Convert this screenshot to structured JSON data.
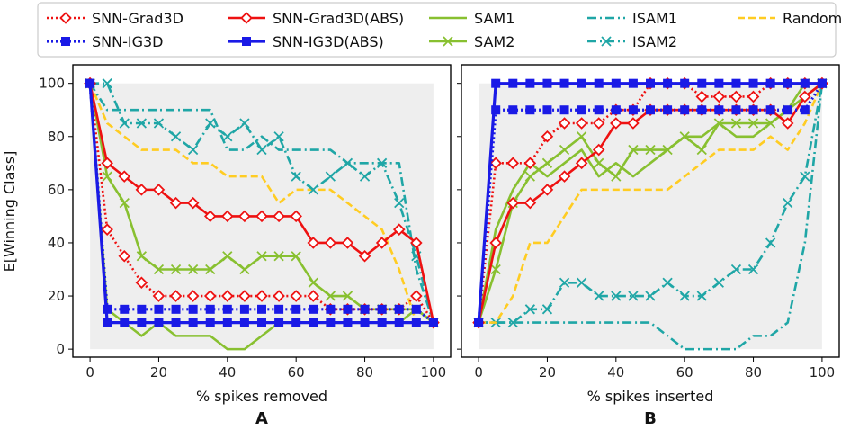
{
  "colors": {
    "red": "#ee1111",
    "blue": "#1a1ae6",
    "green": "#88c030",
    "teal": "#1fa6a6",
    "yellow": "#ffcc22",
    "shade": "#eeeeee"
  },
  "legend": [
    {
      "label": "SNN-Grad3D",
      "color": "#ee1111",
      "dash": "2,3",
      "marker": "diamond"
    },
    {
      "label": "SNN-IG3D",
      "color": "#1a1ae6",
      "dash": "2,3",
      "marker": "square"
    },
    {
      "label": "SNN-Grad3D(ABS)",
      "color": "#ee1111",
      "dash": "",
      "marker": "diamond"
    },
    {
      "label": "SNN-IG3D(ABS)",
      "color": "#1a1ae6",
      "dash": "",
      "marker": "square"
    },
    {
      "label": "SAM1",
      "color": "#88c030",
      "dash": "",
      "marker": "none"
    },
    {
      "label": "SAM2",
      "color": "#88c030",
      "dash": "",
      "marker": "x"
    },
    {
      "label": "ISAM1",
      "color": "#1fa6a6",
      "dash": "10,4,2,4",
      "marker": "none"
    },
    {
      "label": "ISAM2",
      "color": "#1fa6a6",
      "dash": "10,4,2,4",
      "marker": "x"
    },
    {
      "label": "Random",
      "color": "#ffcc22",
      "dash": "8,4",
      "marker": "none"
    }
  ],
  "chart_data": [
    {
      "panel": "A",
      "type": "line",
      "xlabel": "% spikes removed",
      "ylabel": "E[Winning Class]",
      "xlim": [
        -5,
        105
      ],
      "ylim": [
        -3,
        107
      ],
      "xticks": [
        0,
        20,
        40,
        60,
        80,
        100
      ],
      "yticks": [
        0,
        20,
        40,
        60,
        80,
        100
      ],
      "x": [
        0,
        5,
        10,
        15,
        20,
        25,
        30,
        35,
        40,
        45,
        50,
        55,
        60,
        65,
        70,
        75,
        80,
        85,
        90,
        95,
        100
      ],
      "series": [
        {
          "name": "Random",
          "values": [
            100,
            85,
            80,
            75,
            75,
            75,
            70,
            70,
            65,
            65,
            65,
            55,
            60,
            60,
            60,
            55,
            50,
            45,
            30,
            10,
            10
          ]
        },
        {
          "name": "ISAM1",
          "values": [
            100,
            90,
            90,
            90,
            90,
            90,
            90,
            90,
            75,
            75,
            80,
            75,
            75,
            75,
            75,
            70,
            70,
            70,
            70,
            30,
            10
          ]
        },
        {
          "name": "ISAM2",
          "values": [
            100,
            100,
            85,
            85,
            85,
            80,
            75,
            85,
            80,
            85,
            75,
            80,
            65,
            60,
            65,
            70,
            65,
            70,
            55,
            35,
            10
          ]
        },
        {
          "name": "SAM1",
          "values": [
            100,
            15,
            10,
            5,
            10,
            5,
            5,
            5,
            0,
            0,
            5,
            10,
            10,
            10,
            10,
            10,
            10,
            10,
            10,
            15,
            10
          ]
        },
        {
          "name": "SAM2",
          "values": [
            100,
            65,
            55,
            35,
            30,
            30,
            30,
            30,
            35,
            30,
            35,
            35,
            35,
            25,
            20,
            20,
            15,
            15,
            15,
            15,
            10
          ]
        },
        {
          "name": "SNN-Grad3D",
          "values": [
            100,
            45,
            35,
            25,
            20,
            20,
            20,
            20,
            20,
            20,
            20,
            20,
            20,
            20,
            15,
            15,
            15,
            15,
            15,
            20,
            10
          ]
        },
        {
          "name": "SNN-Grad3D(ABS)",
          "values": [
            100,
            70,
            65,
            60,
            60,
            55,
            55,
            50,
            50,
            50,
            50,
            50,
            50,
            40,
            40,
            40,
            35,
            40,
            45,
            40,
            10
          ]
        },
        {
          "name": "SNN-IG3D",
          "values": [
            100,
            15,
            15,
            15,
            15,
            15,
            15,
            15,
            15,
            15,
            15,
            15,
            15,
            15,
            15,
            15,
            15,
            15,
            15,
            15,
            10
          ]
        },
        {
          "name": "SNN-IG3D(ABS)",
          "values": [
            100,
            10,
            10,
            10,
            10,
            10,
            10,
            10,
            10,
            10,
            10,
            10,
            10,
            10,
            10,
            10,
            10,
            10,
            10,
            10,
            10
          ]
        }
      ]
    },
    {
      "panel": "B",
      "type": "line",
      "xlabel": "% spikes inserted",
      "ylabel": "",
      "xlim": [
        -5,
        105
      ],
      "ylim": [
        -3,
        107
      ],
      "xticks": [
        0,
        20,
        40,
        60,
        80,
        100
      ],
      "yticks": [
        0,
        20,
        40,
        60,
        80,
        100
      ],
      "x": [
        0,
        5,
        10,
        15,
        20,
        25,
        30,
        35,
        40,
        45,
        50,
        55,
        60,
        65,
        70,
        75,
        80,
        85,
        90,
        95,
        100
      ],
      "series": [
        {
          "name": "ISAM1",
          "values": [
            10,
            10,
            10,
            10,
            10,
            10,
            10,
            10,
            10,
            10,
            10,
            5,
            0,
            0,
            0,
            0,
            5,
            5,
            10,
            40,
            100
          ]
        },
        {
          "name": "ISAM2",
          "values": [
            10,
            10,
            10,
            15,
            15,
            25,
            25,
            20,
            20,
            20,
            20,
            25,
            20,
            20,
            25,
            30,
            30,
            40,
            55,
            65,
            100
          ]
        },
        {
          "name": "Random",
          "values": [
            10,
            10,
            20,
            40,
            40,
            50,
            60,
            60,
            60,
            60,
            60,
            60,
            65,
            70,
            75,
            75,
            75,
            80,
            75,
            85,
            100
          ]
        },
        {
          "name": "SAM1",
          "values": [
            10,
            45,
            60,
            70,
            65,
            70,
            75,
            65,
            70,
            65,
            70,
            75,
            80,
            80,
            85,
            80,
            80,
            85,
            90,
            95,
            100
          ]
        },
        {
          "name": "SAM2",
          "values": [
            10,
            30,
            55,
            65,
            70,
            75,
            80,
            70,
            65,
            75,
            75,
            75,
            80,
            75,
            85,
            85,
            85,
            85,
            90,
            100,
            100
          ]
        },
        {
          "name": "SNN-Grad3D",
          "values": [
            10,
            70,
            70,
            70,
            80,
            85,
            85,
            85,
            90,
            90,
            100,
            100,
            100,
            95,
            95,
            95,
            95,
            100,
            100,
            100,
            100
          ]
        },
        {
          "name": "SNN-Grad3D(ABS)",
          "values": [
            10,
            40,
            55,
            55,
            60,
            65,
            70,
            75,
            85,
            85,
            90,
            90,
            90,
            90,
            90,
            90,
            90,
            90,
            85,
            95,
            100
          ]
        },
        {
          "name": "SNN-IG3D",
          "values": [
            10,
            90,
            90,
            90,
            90,
            90,
            90,
            90,
            90,
            90,
            90,
            90,
            90,
            90,
            90,
            90,
            90,
            90,
            90,
            90,
            100
          ]
        },
        {
          "name": "SNN-IG3D(ABS)",
          "values": [
            10,
            100,
            100,
            100,
            100,
            100,
            100,
            100,
            100,
            100,
            100,
            100,
            100,
            100,
            100,
            100,
            100,
            100,
            100,
            100,
            100
          ]
        }
      ]
    }
  ]
}
